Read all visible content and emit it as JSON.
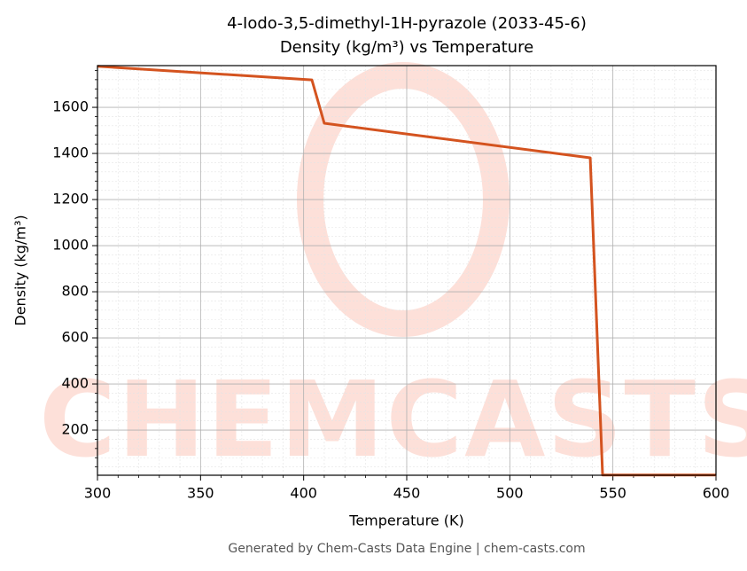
{
  "chart_data": {
    "type": "line",
    "title": "4-Iodo-3,5-dimethyl-1H-pyrazole (2033-45-6)",
    "subtitle": "Density (kg/m³) vs Temperature",
    "x_label": "Temperature (K)",
    "y_label": "Density (kg/m³)",
    "footer": "Generated by Chem-Casts Data Engine | chem-casts.com",
    "watermark": "CHEMCASTS",
    "x": [
      300,
      404,
      410,
      539,
      545,
      600
    ],
    "series": [
      {
        "name": "Density",
        "color": "#d4531f",
        "values": [
          1778,
          1719,
          1531,
          1381,
          5,
          5
        ]
      }
    ],
    "xlim": [
      300,
      600
    ],
    "ylim": [
      4,
      1781
    ],
    "xticks": [
      300,
      350,
      400,
      450,
      500,
      550,
      600
    ],
    "yticks": [
      200,
      400,
      600,
      800,
      1000,
      1200,
      1400,
      1600
    ],
    "xminorticks": [
      310,
      320,
      330,
      340,
      360,
      370,
      380,
      390,
      410,
      420,
      430,
      440,
      460,
      470,
      480,
      490,
      510,
      520,
      530,
      540,
      560,
      570,
      580,
      590
    ],
    "yminorticks": [
      40,
      80,
      120,
      160,
      240,
      280,
      320,
      360,
      440,
      480,
      520,
      560,
      640,
      680,
      720,
      760,
      840,
      880,
      920,
      960,
      1040,
      1080,
      1120,
      1160,
      1240,
      1280,
      1320,
      1360,
      1440,
      1480,
      1520,
      1560,
      1640,
      1680,
      1720,
      1760
    ],
    "grid": true,
    "minor_grid": true
  }
}
